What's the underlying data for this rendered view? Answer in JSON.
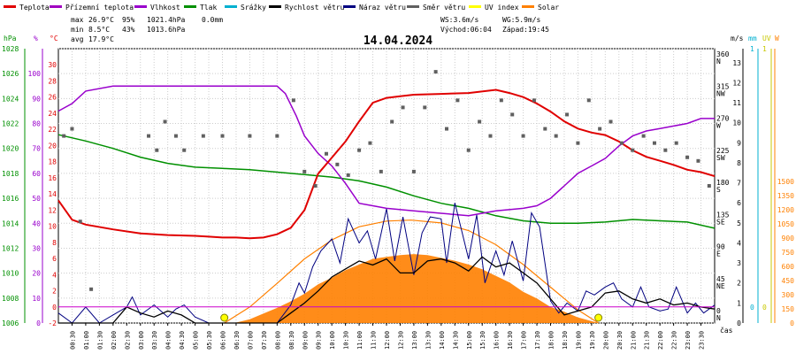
{
  "legend": [
    {
      "label": "Teplota",
      "color": "#e00000"
    },
    {
      "label": "Přízemní teplota",
      "color": "#a000c0"
    },
    {
      "label": "Vlhkost",
      "color": "#9900cc"
    },
    {
      "label": "Tlak",
      "color": "#009000"
    },
    {
      "label": "Srážky",
      "color": "#00b0d0"
    },
    {
      "label": "Rychlost větru",
      "color": "#000000"
    },
    {
      "label": "Náraz větru",
      "color": "#000080"
    },
    {
      "label": "Směr větru",
      "color": "#606060"
    },
    {
      "label": "UV index",
      "color": "#ffff00"
    },
    {
      "label": "Solar",
      "color": "#ff8000"
    }
  ],
  "stats": {
    "max_label": "max",
    "min_label": "min",
    "avg_label": "avg",
    "max_temp": "26.9°C",
    "max_hum": "95%",
    "max_press": "1021.4hPa",
    "max_rain": "0.0mm",
    "min_temp": "8.5°C",
    "min_hum": "43%",
    "min_press": "1013.6hPa",
    "avg_temp": "17.9°C"
  },
  "wind_info": {
    "ws": "WS:3.6m/s",
    "wg": "WG:5.9m/s",
    "sunrise": "Východ:06:04",
    "sunset": "Západ:19:45"
  },
  "date": "14.04.2024",
  "axis_units": {
    "press": "hPa",
    "hum": "%",
    "temp": "°C",
    "wind": "m/s",
    "rain": "mm",
    "uv": "UV",
    "solar": "W",
    "time": "čas"
  },
  "colors": {
    "press_axis": "#009000",
    "hum_axis": "#9900cc",
    "temp_axis": "#e00000",
    "wind_axis": "#000000",
    "rain_axis": "#00b0d0",
    "uv_axis": "#c8c800",
    "solar_axis": "#ff8000",
    "solar_fill": "#ff8000",
    "solar_curve": "#ff8000",
    "grid": "#cccccc"
  },
  "chart_data": {
    "type": "line",
    "x_ticks": [
      "00:30",
      "01:00",
      "01:30",
      "02:00",
      "02:30",
      "03:00",
      "03:30",
      "04:00",
      "04:30",
      "05:00",
      "05:30",
      "06:00",
      "06:30",
      "07:00",
      "07:30",
      "08:00",
      "08:30",
      "09:00",
      "09:30",
      "10:00",
      "10:30",
      "11:00",
      "11:30",
      "12:00",
      "12:30",
      "13:00",
      "13:30",
      "14:00",
      "14:30",
      "15:00",
      "15:30",
      "16:00",
      "16:30",
      "17:00",
      "17:30",
      "18:00",
      "18:30",
      "19:00",
      "19:30",
      "20:00",
      "20:30",
      "21:00",
      "21:30",
      "22:00",
      "22:30",
      "23:00",
      "23:30"
    ],
    "axes": {
      "press": {
        "ticks": [
          "1006",
          "1008",
          "1010",
          "1012",
          "1014",
          "1016",
          "1018",
          "1020",
          "1022",
          "1024",
          "1026",
          "1028"
        ],
        "ylim": [
          1006,
          1028
        ]
      },
      "hum": {
        "ticks": [
          "0",
          "10",
          "20",
          "30",
          "40",
          "50",
          "60",
          "70",
          "80",
          "90",
          "100"
        ],
        "ylim": [
          0,
          110
        ]
      },
      "temp": {
        "ticks": [
          "-2",
          "0",
          "2",
          "4",
          "6",
          "8",
          "10",
          "12",
          "14",
          "16",
          "18",
          "20",
          "22",
          "24",
          "26",
          "28",
          "30"
        ],
        "ylim": [
          -2,
          32
        ]
      },
      "wind_dir": {
        "ticks": [
          "360 N",
          "315 NW",
          "270 W",
          "225 SW",
          "180 S",
          "135 SE",
          "90 E",
          "45 NE",
          "0 N"
        ]
      },
      "wind": {
        "ticks": [
          "0",
          "1",
          "2",
          "3",
          "4",
          "5",
          "6",
          "7",
          "8",
          "9",
          "10",
          "11",
          "12",
          "13"
        ],
        "ylim": [
          0,
          13.7
        ]
      },
      "rain": {
        "ticks": [
          "0",
          "1"
        ]
      },
      "uv": {
        "ticks": [
          "0",
          "1"
        ]
      },
      "solar": {
        "ticks": [
          "0",
          "150",
          "300",
          "450",
          "600",
          "750",
          "900",
          "1050",
          "1200",
          "1350",
          "1500"
        ],
        "ylim": [
          0,
          1500
        ]
      }
    },
    "series": [
      {
        "name": "Teplota",
        "axis": "temp",
        "x": [
          0,
          0.5,
          1,
          2,
          3,
          4,
          5,
          5.5,
          6,
          6.5,
          7,
          7.5,
          8,
          8.5,
          9,
          9.5,
          10,
          10.5,
          11,
          11.5,
          12,
          12.5,
          13,
          14,
          15,
          16,
          16.5,
          17,
          17.5,
          18,
          18.5,
          19,
          19.5,
          20,
          20.5,
          21,
          21.5,
          22,
          22.5,
          23,
          23.5,
          24
        ],
        "y": [
          13.2,
          10.8,
          10.2,
          9.6,
          9.1,
          8.9,
          8.8,
          8.7,
          8.6,
          8.6,
          8.5,
          8.6,
          9.0,
          9.8,
          12.0,
          16.5,
          18.5,
          20.5,
          23.0,
          25.3,
          25.9,
          26.1,
          26.3,
          26.4,
          26.5,
          26.9,
          26.5,
          26.0,
          25.2,
          24.2,
          23.0,
          22.1,
          21.6,
          21.3,
          20.5,
          19.4,
          18.6,
          18.1,
          17.6,
          17.0,
          16.7,
          16.2
        ]
      },
      {
        "name": "Vlhkost",
        "axis": "hum",
        "x": [
          0,
          0.5,
          1,
          2,
          3,
          4,
          5,
          6,
          7,
          8,
          8.3,
          8.7,
          9,
          9.5,
          10,
          10.5,
          11,
          11.5,
          12,
          13,
          14,
          15,
          16,
          17,
          17.5,
          18,
          18.5,
          19,
          19.5,
          20,
          20.5,
          21,
          21.5,
          22,
          22.5,
          23,
          23.5,
          24
        ],
        "y": [
          85,
          88,
          93,
          95,
          95,
          95,
          95,
          95,
          95,
          95,
          92,
          83,
          75,
          68,
          63,
          56,
          48,
          47,
          46,
          45,
          44,
          43,
          45,
          46,
          47,
          50,
          55,
          60,
          63,
          66,
          71,
          75,
          77,
          78,
          79,
          80,
          82,
          82
        ]
      },
      {
        "name": "Tlak",
        "axis": "press",
        "x": [
          0,
          1,
          2,
          3,
          4,
          5,
          6,
          7,
          8,
          9,
          10,
          11,
          12,
          13,
          14,
          15,
          16,
          17,
          18,
          19,
          20,
          21,
          22,
          23,
          24
        ],
        "y": [
          1021.1,
          1020.6,
          1020.0,
          1019.3,
          1018.8,
          1018.5,
          1018.4,
          1018.3,
          1018.1,
          1017.9,
          1017.7,
          1017.4,
          1016.9,
          1016.2,
          1015.6,
          1015.2,
          1014.6,
          1014.2,
          1014.0,
          1014.0,
          1014.1,
          1014.3,
          1014.2,
          1014.1,
          1013.6
        ]
      },
      {
        "name": "Solar",
        "axis": "solar",
        "x": [
          6,
          6.5,
          7,
          7.5,
          8,
          8.5,
          9,
          9.5,
          10,
          10.5,
          11,
          11.5,
          12,
          12.5,
          13,
          13.5,
          14,
          14.5,
          15,
          15.5,
          16,
          16.5,
          17,
          17.5,
          18,
          18.5,
          19,
          19.5,
          19.75
        ],
        "y": [
          0,
          5,
          40,
          100,
          160,
          230,
          310,
          410,
          480,
          560,
          620,
          680,
          700,
          720,
          730,
          720,
          690,
          660,
          620,
          570,
          500,
          430,
          330,
          260,
          170,
          120,
          60,
          20,
          0
        ]
      },
      {
        "name": "Solar teoretický",
        "axis": "solar",
        "x": [
          6.07,
          7,
          8,
          9,
          10,
          11,
          12,
          12.9,
          14,
          15,
          16,
          17,
          18,
          19,
          19.75
        ],
        "y": [
          0,
          170,
          420,
          680,
          880,
          1020,
          1080,
          1090,
          1060,
          980,
          830,
          620,
          380,
          140,
          0
        ]
      },
      {
        "name": "Rychlost větru",
        "axis": "wind",
        "x": [
          0,
          1,
          2,
          2.5,
          3,
          3.5,
          4,
          4.5,
          5,
          6,
          7,
          8,
          8.5,
          9,
          9.5,
          10,
          10.5,
          11,
          11.5,
          12,
          12.5,
          13,
          13.5,
          14,
          14.5,
          15,
          15.5,
          16,
          16.5,
          17,
          17.5,
          18,
          18.5,
          19,
          19.5,
          20,
          20.5,
          21,
          21.5,
          22,
          22.5,
          23,
          23.5,
          24
        ],
        "y": [
          0,
          0,
          0,
          0.8,
          0.5,
          0.3,
          0.6,
          0.4,
          0,
          0,
          0,
          0,
          0.5,
          1.0,
          1.6,
          2.3,
          2.7,
          3.1,
          2.9,
          3.2,
          2.5,
          2.5,
          3.1,
          3.2,
          3.0,
          2.6,
          3.3,
          2.8,
          3.0,
          2.5,
          2.0,
          1.2,
          0.4,
          0.6,
          0.8,
          1.5,
          1.6,
          1.2,
          1.0,
          1.2,
          0.9,
          1.0,
          0.8,
          0.7
        ]
      },
      {
        "name": "Náraz větru",
        "axis": "wind",
        "x": [
          0,
          0.5,
          1,
          1.5,
          2,
          2.5,
          2.7,
          3,
          3.5,
          4,
          4.3,
          4.6,
          5,
          5.5,
          6,
          6.5,
          7,
          7.5,
          8,
          8.5,
          8.8,
          9,
          9.3,
          9.6,
          10,
          10.3,
          10.6,
          11,
          11.3,
          11.6,
          12,
          12.3,
          12.6,
          13,
          13.3,
          13.6,
          14,
          14.2,
          14.5,
          15,
          15.3,
          15.6,
          16,
          16.3,
          16.6,
          17,
          17.3,
          17.6,
          18,
          18.3,
          18.6,
          19,
          19.3,
          19.6,
          20,
          20.3,
          20.6,
          21,
          21.3,
          21.6,
          22,
          22.3,
          22.6,
          23,
          23.3,
          23.6,
          24
        ],
        "y": [
          0.5,
          0,
          0.8,
          0,
          0.4,
          0.8,
          1.3,
          0.4,
          0.9,
          0.3,
          0.7,
          0.9,
          0.3,
          0,
          0,
          0,
          0,
          0,
          0,
          0.9,
          2.0,
          1.5,
          2.8,
          3.6,
          4.2,
          3.0,
          5.2,
          4.0,
          4.6,
          3.2,
          5.7,
          3.1,
          5.3,
          2.4,
          4.5,
          5.3,
          5.2,
          3.0,
          6.0,
          3.2,
          5.4,
          2.0,
          3.6,
          2.4,
          4.1,
          2.1,
          5.5,
          4.8,
          1.1,
          0.5,
          1.0,
          0.6,
          1.6,
          1.4,
          1.8,
          2.0,
          1.2,
          0.8,
          1.8,
          0.8,
          0.6,
          0.7,
          1.8,
          0.5,
          1.0,
          0.5,
          0.9
        ]
      },
      {
        "name": "Směr větru",
        "axis": "wind_dir",
        "type": "scatter",
        "x": [
          0.2,
          0.5,
          0.8,
          1.2,
          3.3,
          3.6,
          3.9,
          4.3,
          4.6,
          5.3,
          6.0,
          7.0,
          8.0,
          8.6,
          9.0,
          9.4,
          9.8,
          10.2,
          10.6,
          11.0,
          11.4,
          11.8,
          12.2,
          12.6,
          13.0,
          13.4,
          13.8,
          14.2,
          14.6,
          15.0,
          15.4,
          15.8,
          16.2,
          16.6,
          17.0,
          17.4,
          17.8,
          18.2,
          18.6,
          19.0,
          19.4,
          19.8,
          20.2,
          20.6,
          21.0,
          21.4,
          21.8,
          22.2,
          22.6,
          23.0,
          23.4,
          23.8
        ],
        "y": [
          250,
          260,
          130,
          35,
          250,
          230,
          270,
          250,
          230,
          250,
          250,
          250,
          250,
          300,
          200,
          180,
          225,
          210,
          195,
          230,
          240,
          200,
          270,
          290,
          200,
          290,
          340,
          260,
          300,
          230,
          270,
          250,
          300,
          280,
          250,
          300,
          260,
          250,
          280,
          240,
          300,
          260,
          270,
          240,
          230,
          250,
          240,
          230,
          240,
          220,
          215,
          180
        ]
      }
    ]
  }
}
